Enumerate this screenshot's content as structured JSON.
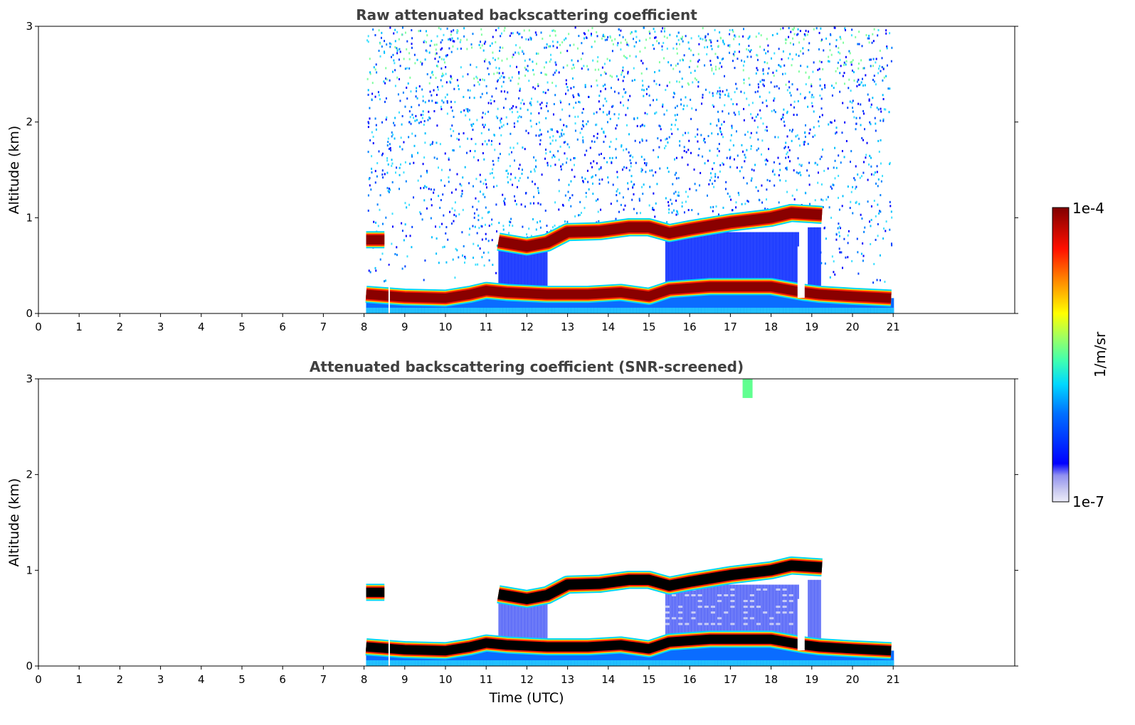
{
  "chart_data": [
    {
      "type": "heatmap",
      "title": "Raw attenuated backscattering coefficient",
      "xlabel": "",
      "ylabel": "Altitude (km)",
      "xlim": [
        0,
        24
      ],
      "ylim": [
        0,
        3
      ],
      "xticks": [
        "0",
        "1",
        "2",
        "3",
        "4",
        "5",
        "6",
        "7",
        "8",
        "9",
        "10",
        "11",
        "12",
        "13",
        "14",
        "15",
        "16",
        "17",
        "18",
        "19",
        "20",
        "21"
      ],
      "yticks": [
        "0",
        "1",
        "2",
        "3"
      ],
      "data_time_range": [
        8.05,
        20.95
      ],
      "layers": [
        {
          "name": "boundary-layer",
          "points": [
            [
              8.05,
              0.2
            ],
            [
              9,
              0.17
            ],
            [
              10,
              0.16
            ],
            [
              10.6,
              0.2
            ],
            [
              11,
              0.24
            ],
            [
              11.5,
              0.22
            ],
            [
              12.5,
              0.2
            ],
            [
              13.5,
              0.2
            ],
            [
              14.3,
              0.22
            ],
            [
              15,
              0.18
            ],
            [
              15.5,
              0.25
            ],
            [
              16.5,
              0.28
            ],
            [
              18,
              0.28
            ],
            [
              18.8,
              0.22
            ],
            [
              19.2,
              0.2
            ],
            [
              20,
              0.18
            ],
            [
              20.95,
              0.16
            ]
          ],
          "thickness": 0.12
        },
        {
          "name": "residual-layer",
          "points": [
            [
              11.3,
              0.75
            ],
            [
              12,
              0.7
            ],
            [
              12.5,
              0.74
            ],
            [
              13,
              0.85
            ],
            [
              13.8,
              0.86
            ],
            [
              14.5,
              0.9
            ],
            [
              15,
              0.9
            ],
            [
              15.5,
              0.84
            ],
            [
              16,
              0.88
            ],
            [
              17,
              0.95
            ],
            [
              18,
              1.0
            ],
            [
              18.5,
              1.05
            ],
            [
              19.25,
              1.03
            ]
          ],
          "thickness": 0.13
        },
        {
          "name": "early-layer",
          "points": [
            [
              8.05,
              0.77
            ],
            [
              8.5,
              0.77
            ]
          ],
          "thickness": 0.12
        }
      ]
    },
    {
      "type": "heatmap",
      "title": "Attenuated backscattering coefficient (SNR-screened)",
      "xlabel": "Time (UTC)",
      "ylabel": "Altitude (km)",
      "xlim": [
        0,
        24
      ],
      "ylim": [
        0,
        3
      ],
      "xticks": [
        "0",
        "1",
        "2",
        "3",
        "4",
        "5",
        "6",
        "7",
        "8",
        "9",
        "10",
        "11",
        "12",
        "13",
        "14",
        "15",
        "16",
        "17",
        "18",
        "19",
        "20",
        "21"
      ],
      "yticks": [
        "0",
        "1",
        "2",
        "3"
      ],
      "data_time_range": [
        8.05,
        20.95
      ]
    }
  ],
  "colorbar": {
    "min_label": "1e-7",
    "max_label": "1e-4",
    "unit_label": "1/m/sr",
    "colormap": "jet",
    "colors": [
      "#e8e8f8",
      "#c8c8f0",
      "#0000ff",
      "#0080ff",
      "#00e0ff",
      "#80ff80",
      "#ffff00",
      "#ff8000",
      "#ff0000",
      "#800000"
    ]
  }
}
